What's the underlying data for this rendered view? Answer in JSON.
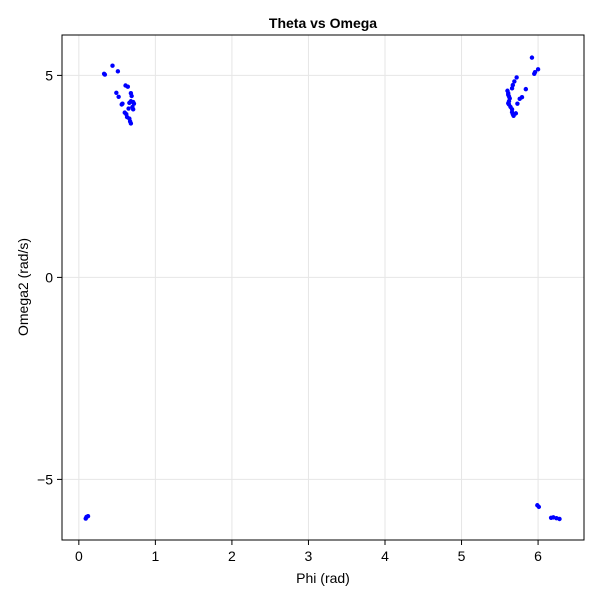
{
  "chart_data": {
    "type": "scatter",
    "title": "Theta vs Omega",
    "xlabel": "Phi (rad)",
    "ylabel": "Omega2 (rad/s)",
    "xlim": [
      -0.22,
      6.6
    ],
    "ylim": [
      -6.5,
      6.0
    ],
    "xticks": [
      0,
      1,
      2,
      3,
      4,
      5,
      6
    ],
    "xtick_labels": [
      "0",
      "1",
      "2",
      "3",
      "4",
      "5",
      "6"
    ],
    "yticks": [
      -5,
      0,
      5
    ],
    "ytick_labels": [
      "−5",
      "0",
      "5"
    ],
    "grid": true,
    "marker_color": "#0000ff",
    "series": [
      {
        "points": [
          [
            0.33,
            5.04
          ],
          [
            0.34,
            5.02
          ],
          [
            0.44,
            5.24
          ],
          [
            0.51,
            5.1
          ],
          [
            0.49,
            4.57
          ],
          [
            0.52,
            4.47
          ],
          [
            0.57,
            4.3
          ],
          [
            0.56,
            4.28
          ],
          [
            0.61,
            4.75
          ],
          [
            0.64,
            4.72
          ],
          [
            0.68,
            4.56
          ],
          [
            0.69,
            4.49
          ],
          [
            0.68,
            4.36
          ],
          [
            0.66,
            4.32
          ],
          [
            0.71,
            4.34
          ],
          [
            0.72,
            4.3
          ],
          [
            0.7,
            4.22
          ],
          [
            0.71,
            4.16
          ],
          [
            0.65,
            4.18
          ],
          [
            0.6,
            4.08
          ],
          [
            0.62,
            4.04
          ],
          [
            0.63,
            3.97
          ],
          [
            0.66,
            3.93
          ],
          [
            0.67,
            3.86
          ],
          [
            0.68,
            3.81
          ],
          [
            5.61,
            4.56
          ],
          [
            5.6,
            4.62
          ],
          [
            5.61,
            4.52
          ],
          [
            5.62,
            4.48
          ],
          [
            5.63,
            4.43
          ],
          [
            5.62,
            4.36
          ],
          [
            5.61,
            4.31
          ],
          [
            5.62,
            4.28
          ],
          [
            5.64,
            4.22
          ],
          [
            5.66,
            4.16
          ],
          [
            5.66,
            4.09
          ],
          [
            5.67,
            4.04
          ],
          [
            5.68,
            4.0
          ],
          [
            5.71,
            4.06
          ],
          [
            5.66,
            4.68
          ],
          [
            5.67,
            4.76
          ],
          [
            5.69,
            4.85
          ],
          [
            5.72,
            4.95
          ],
          [
            5.73,
            4.3
          ],
          [
            5.76,
            4.42
          ],
          [
            5.79,
            4.46
          ],
          [
            5.84,
            4.66
          ],
          [
            5.92,
            5.44
          ],
          [
            5.95,
            5.04
          ],
          [
            5.96,
            5.08
          ],
          [
            6.0,
            5.15
          ],
          [
            0.09,
            -5.97
          ],
          [
            0.1,
            -5.93
          ],
          [
            0.12,
            -5.91
          ],
          [
            5.99,
            -5.64
          ],
          [
            6.01,
            -5.68
          ],
          [
            6.17,
            -5.95
          ],
          [
            6.2,
            -5.94
          ],
          [
            6.24,
            -5.96
          ],
          [
            6.28,
            -5.98
          ]
        ]
      }
    ]
  }
}
